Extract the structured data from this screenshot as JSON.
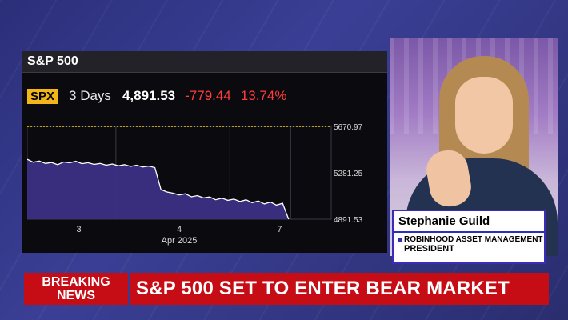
{
  "chart_panel": {
    "title": "S&P 500",
    "ticker": "SPX",
    "period": "3 Days",
    "price": "4,891.53",
    "change": "-779.44",
    "percent": "13.74%"
  },
  "chart_data": {
    "type": "line",
    "title": "S&P 500",
    "x_tick_labels": [
      "3",
      "4",
      "7"
    ],
    "x_sub_label": "Apr 2025",
    "y_tick_labels": [
      "5670.97",
      "5281.25",
      "4891.53"
    ],
    "reference_line": 5670.97,
    "ylim": [
      4891.53,
      5670.97
    ],
    "grid": true,
    "colors": {
      "line": "#ffffff",
      "fill": "#3c2f85",
      "reference": "#f2d21b",
      "down": "#ff3b3b",
      "ticker_bg": "#f2b51a"
    },
    "series": [
      {
        "x": [
          0,
          0.02,
          0.04,
          0.06,
          0.08,
          0.1,
          0.12,
          0.14,
          0.16,
          0.18,
          0.2,
          0.22,
          0.24,
          0.26,
          0.28,
          0.3,
          0.32,
          0.34,
          0.36,
          0.38,
          0.4,
          0.42,
          0.44,
          0.46,
          0.48,
          0.5,
          0.52,
          0.54,
          0.56,
          0.58,
          0.6,
          0.62,
          0.64,
          0.66,
          0.68,
          0.7,
          0.72,
          0.74,
          0.76,
          0.78,
          0.8,
          0.82,
          0.84,
          0.86
        ],
        "values": [
          5395,
          5370,
          5380,
          5360,
          5368,
          5350,
          5372,
          5365,
          5378,
          5358,
          5366,
          5352,
          5360,
          5345,
          5355,
          5340,
          5350,
          5335,
          5345,
          5330,
          5338,
          5325,
          5140,
          5120,
          5110,
          5095,
          5105,
          5080,
          5090,
          5070,
          5078,
          5055,
          5068,
          5050,
          5060,
          5040,
          5055,
          5030,
          5045,
          5020,
          5035,
          5010,
          5025,
          4891.53
        ]
      }
    ]
  },
  "guest": {
    "name": "Stephanie Guild",
    "organization": "ROBINHOOD ASSET MANAGEMENT",
    "title": "PRESIDENT"
  },
  "breaking": {
    "line1": "BREAKING",
    "line2": "NEWS",
    "headline": "S&P 500 SET TO ENTER BEAR MARKET"
  }
}
